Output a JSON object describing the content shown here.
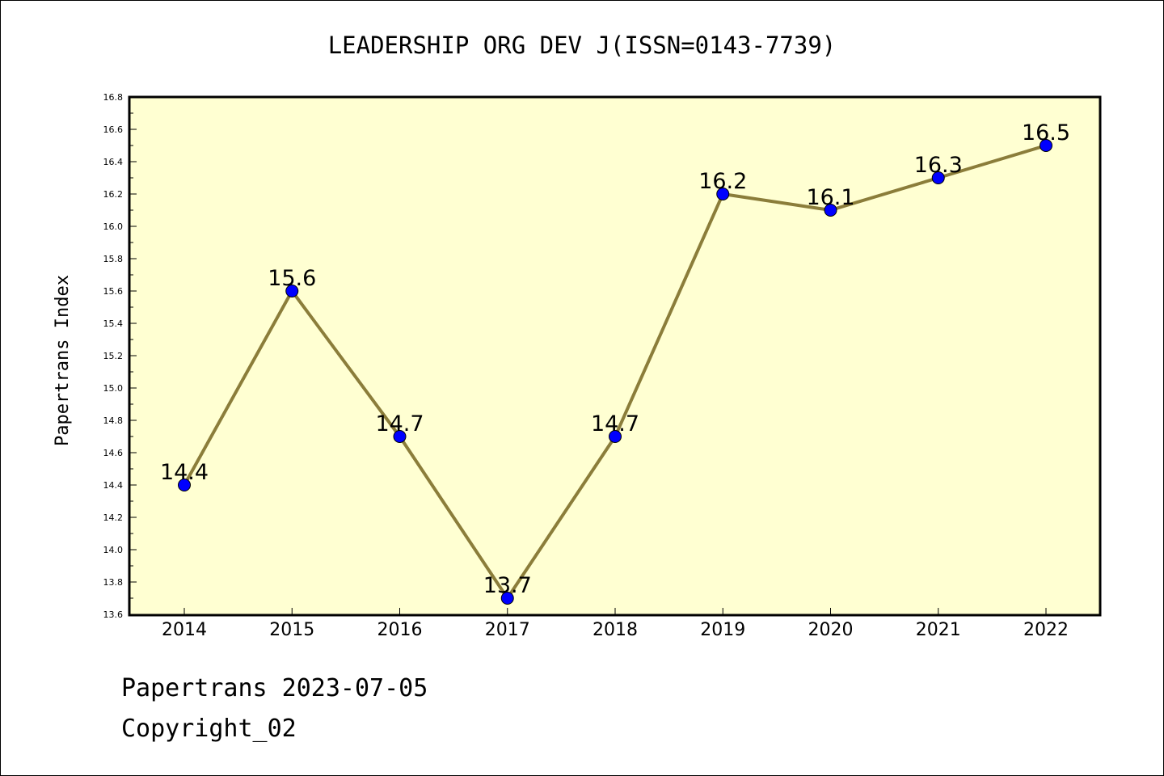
{
  "chart_data": {
    "type": "line",
    "title": "LEADERSHIP ORG DEV J(ISSN=0143-7739)",
    "xlabel": "",
    "ylabel": "Papertrans Index",
    "categories": [
      "2014",
      "2015",
      "2016",
      "2017",
      "2018",
      "2019",
      "2020",
      "2021",
      "2022"
    ],
    "series": [
      {
        "values": [
          14.4,
          15.6,
          14.7,
          13.7,
          14.7,
          16.2,
          16.1,
          16.3,
          16.5
        ],
        "data_labels": [
          "14.4",
          "15.6",
          "14.7",
          "13.7",
          "14.7",
          "16.2",
          "16.1",
          "16.3",
          "16.5"
        ]
      }
    ],
    "ylim": [
      13.6,
      16.8
    ],
    "yticks": [
      "13.6",
      "13.8",
      "14.0",
      "14.2",
      "14.4",
      "14.6",
      "14.8",
      "15.0",
      "15.2",
      "15.4",
      "15.6",
      "15.8",
      "16.0",
      "16.2",
      "16.4",
      "16.6",
      "16.8"
    ],
    "grid": false,
    "colors": {
      "plot_background": "#ffffd2",
      "line": "#8b7d3a",
      "marker": "#0000ff"
    }
  },
  "footer": {
    "date_line": "Papertrans 2023-07-05",
    "copyright": "Copyright_02"
  }
}
